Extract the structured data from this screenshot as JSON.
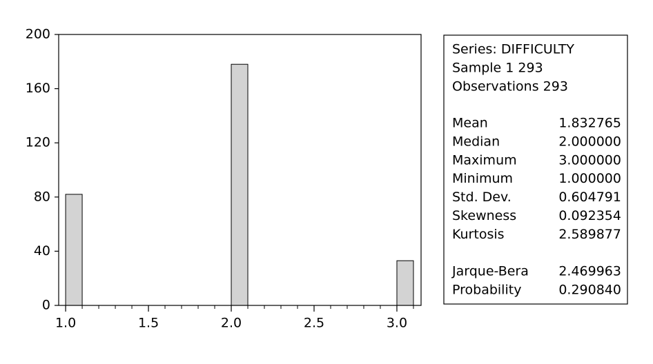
{
  "chart_data": {
    "type": "histogram",
    "bins": [
      1.0,
      1.1,
      1.2,
      1.3,
      1.4,
      1.5,
      1.6,
      1.7,
      1.8,
      1.9,
      2.0,
      2.1,
      2.2,
      2.3,
      2.4,
      2.5,
      2.6,
      2.7,
      2.8,
      2.9,
      3.0,
      3.1
    ],
    "counts": [
      82,
      0,
      0,
      0,
      0,
      0,
      0,
      0,
      0,
      0,
      178,
      0,
      0,
      0,
      0,
      0,
      0,
      0,
      0,
      0,
      33
    ],
    "color": "#d3d3d3",
    "xlim": [
      0.958,
      3.146
    ],
    "xticks": [
      {
        "value": 1.0,
        "label": "1.0"
      },
      {
        "value": 1.5,
        "label": "1.5"
      },
      {
        "value": 2.0,
        "label": "2.0"
      },
      {
        "value": 2.5,
        "label": "2.5"
      },
      {
        "value": 3.0,
        "label": "3.0"
      }
    ],
    "ylim": [
      0,
      200
    ],
    "yticks": [
      0,
      40,
      80,
      120,
      160,
      200
    ]
  },
  "stats": {
    "header": [
      "Series: DIFFICULTY",
      "Sample 1 293",
      "Observations 293"
    ],
    "rows": [
      [
        "Mean",
        "1.832765"
      ],
      [
        "Median",
        "2.000000"
      ],
      [
        "Maximum",
        "3.000000"
      ],
      [
        "Minimum",
        "1.000000"
      ],
      [
        "Std. Dev.",
        "0.604791"
      ],
      [
        "Skewness",
        "0.092354"
      ],
      [
        "Kurtosis",
        "2.589877"
      ]
    ],
    "tests": [
      [
        "Jarque-Bera",
        "2.469963"
      ],
      [
        "Probability",
        "0.290840"
      ]
    ]
  }
}
